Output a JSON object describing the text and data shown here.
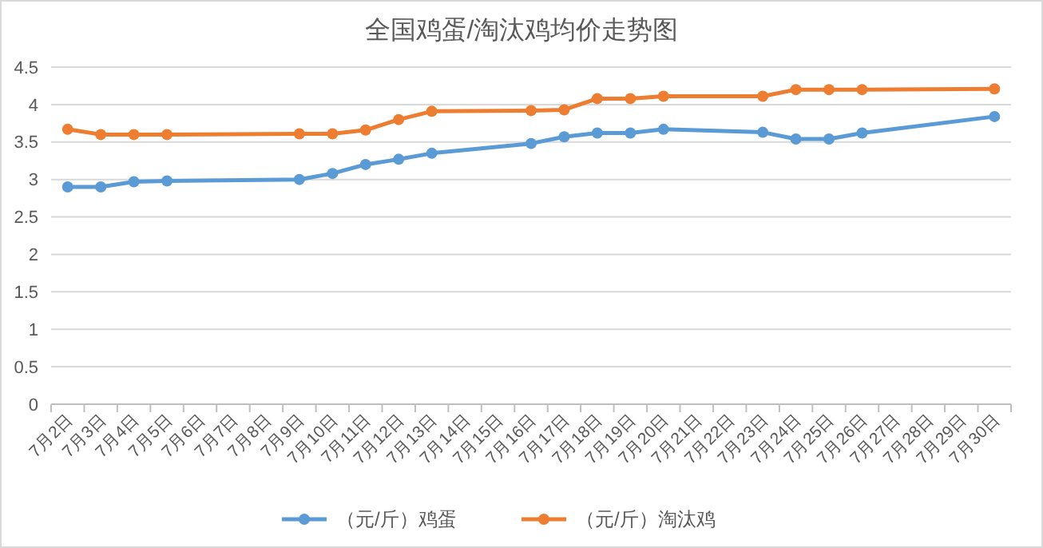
{
  "chart_data": {
    "type": "line",
    "title": "全国鸡蛋/淘汰鸡均价走势图",
    "categories": [
      "7月2日",
      "7月3日",
      "7月4日",
      "7月5日",
      "7月6日",
      "7月7日",
      "7月8日",
      "7月9日",
      "7月10日",
      "7月11日",
      "7月12日",
      "7月13日",
      "7月14日",
      "7月15日",
      "7月16日",
      "7月17日",
      "7月18日",
      "7月19日",
      "7月20日",
      "7月21日",
      "7月22日",
      "7月23日",
      "7月24日",
      "7月25日",
      "7月26日",
      "7月27日",
      "7月28日",
      "7月29日",
      "7月30日"
    ],
    "series": [
      {
        "name": "（元/斤）鸡蛋",
        "color": "#5b9bd5",
        "values": [
          2.9,
          2.9,
          2.97,
          2.98,
          null,
          null,
          null,
          3.0,
          3.08,
          3.2,
          3.27,
          3.35,
          null,
          null,
          3.48,
          3.57,
          3.62,
          3.62,
          3.67,
          null,
          null,
          3.63,
          3.54,
          3.54,
          3.62,
          null,
          null,
          null,
          3.84
        ]
      },
      {
        "name": "（元/斤）淘汰鸡",
        "color": "#ed7d31",
        "values": [
          3.67,
          3.6,
          3.6,
          3.6,
          null,
          null,
          null,
          3.61,
          3.61,
          3.66,
          3.8,
          3.91,
          null,
          null,
          3.92,
          3.93,
          4.08,
          4.08,
          4.11,
          null,
          null,
          4.11,
          4.2,
          4.2,
          4.2,
          null,
          null,
          null,
          4.21
        ]
      }
    ],
    "ylim": [
      0,
      4.5
    ],
    "yticks": [
      0,
      0.5,
      1,
      1.5,
      2,
      2.5,
      3,
      3.5,
      4,
      4.5
    ],
    "grid": "y",
    "legend": "bottom",
    "marker": "circle",
    "line_style": "solid"
  }
}
